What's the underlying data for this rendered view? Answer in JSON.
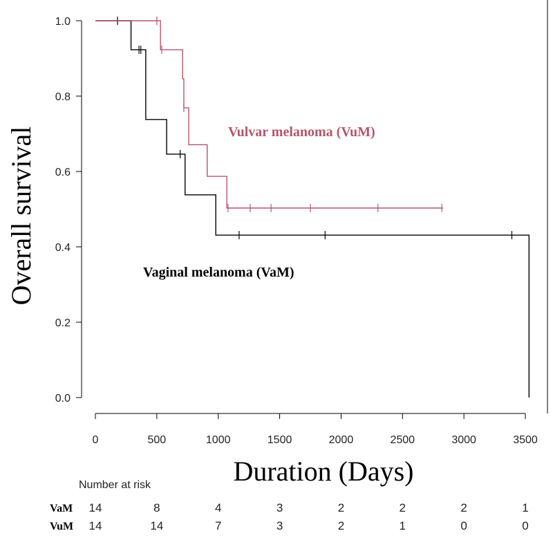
{
  "chart_data": {
    "type": "line",
    "subtype": "kaplan-meier",
    "title": "",
    "xlabel": "Duration (Days)",
    "ylabel": "Overall survival",
    "xlim": [
      0,
      3500
    ],
    "ylim": [
      0,
      1.0
    ],
    "x_ticks": [
      0,
      500,
      1000,
      1500,
      2000,
      2500,
      3000,
      3500
    ],
    "y_ticks": [
      "0.0",
      "0.2",
      "0.4",
      "0.6",
      "0.8",
      "1.0"
    ],
    "grid": false,
    "series": [
      {
        "name": "Vaginal melanoma (VaM)",
        "color": "#000000",
        "steps": [
          [
            0,
            1.0
          ],
          [
            290,
            0.923
          ],
          [
            410,
            0.738
          ],
          [
            580,
            0.646
          ],
          [
            730,
            0.538
          ],
          [
            980,
            0.431
          ],
          [
            3530,
            0.0
          ]
        ],
        "end_x": 3530,
        "censored": [
          [
            180,
            1.0
          ],
          [
            355,
            0.923
          ],
          [
            370,
            0.923
          ],
          [
            690,
            0.646
          ],
          [
            1170,
            0.431
          ],
          [
            1870,
            0.431
          ],
          [
            3390,
            0.431
          ]
        ]
      },
      {
        "name": "Vulvar melanoma (VuM)",
        "color": "#b5566a",
        "steps": [
          [
            0,
            1.0
          ],
          [
            530,
            0.923
          ],
          [
            710,
            0.846
          ],
          [
            720,
            0.769
          ],
          [
            760,
            0.671
          ],
          [
            910,
            0.587
          ],
          [
            1070,
            0.503
          ]
        ],
        "end_x": 2830,
        "censored": [
          [
            500,
            1.0
          ],
          [
            540,
            0.923
          ],
          [
            720,
            0.769
          ],
          [
            1080,
            0.503
          ],
          [
            1260,
            0.503
          ],
          [
            1430,
            0.503
          ],
          [
            1750,
            0.503
          ],
          [
            2300,
            0.503
          ],
          [
            2820,
            0.503
          ]
        ]
      }
    ],
    "annotations": [
      {
        "text": "Vulvar melanoma (VuM)",
        "color": "#b5566a",
        "x": 1800,
        "y": 0.7
      },
      {
        "text": "Vaginal melanoma (VaM)",
        "color": "#000000",
        "x": 1360,
        "y": 0.33
      }
    ]
  },
  "risk_table": {
    "title": "Number at risk",
    "rows": [
      {
        "label": "VaM",
        "values": [
          "14",
          "8",
          "4",
          "3",
          "2",
          "2",
          "2",
          "1"
        ]
      },
      {
        "label": "VuM",
        "values": [
          "14",
          "14",
          "7",
          "3",
          "2",
          "1",
          "0",
          "0"
        ]
      }
    ]
  }
}
